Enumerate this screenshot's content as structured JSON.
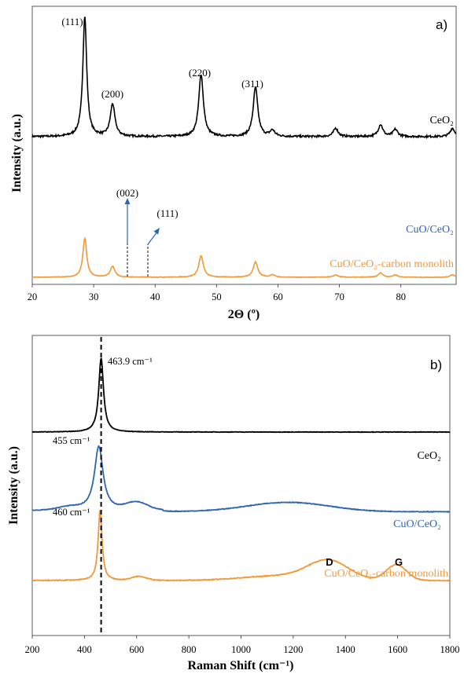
{
  "chart_data": [
    {
      "type": "line",
      "panel_label": "a)",
      "xlabel": "2Θ (º)",
      "ylabel": "Intensity (a.u.)",
      "xlim": [
        20,
        89
      ],
      "xticks": [
        20,
        30,
        40,
        50,
        60,
        70,
        80
      ],
      "colors": {
        "CeO2": "#000000",
        "CuO/CeO2": "#2e64b0",
        "carbon": "#f1993a"
      },
      "series": [
        {
          "key": "CeO2",
          "name": "CeO₂",
          "base": 0.82,
          "peaks": [
            [
              28.55,
              100
            ],
            [
              33.08,
              27
            ],
            [
              47.48,
              52
            ],
            [
              56.34,
              41
            ],
            [
              59.1,
              5
            ],
            [
              69.4,
              7
            ],
            [
              76.7,
              10
            ],
            [
              79.1,
              6
            ],
            [
              88.4,
              7
            ]
          ]
        },
        {
          "key": "CuO",
          "name": "CuO/CeO₂",
          "base": 0.51,
          "peaks": [
            [
              28.55,
              100
            ],
            [
              33.08,
              25
            ],
            [
              35.5,
              3
            ],
            [
              38.7,
              3
            ],
            [
              47.48,
              45
            ],
            [
              56.34,
              33
            ],
            [
              59.1,
              5
            ],
            [
              69.4,
              5
            ],
            [
              76.7,
              10
            ],
            [
              79.1,
              5
            ],
            [
              88.4,
              5
            ]
          ]
        },
        {
          "key": "carbon",
          "name": "CuO/CeO₂-carbon monolith",
          "base": 0.35,
          "peaks": [
            [
              28.55,
              100
            ],
            [
              33.08,
              28
            ],
            [
              47.48,
              55
            ],
            [
              56.34,
              39
            ],
            [
              59.1,
              6
            ],
            [
              69.4,
              6
            ],
            [
              76.7,
              11
            ],
            [
              79.1,
              6
            ],
            [
              88.4,
              6
            ]
          ]
        }
      ],
      "annotations": {
        "p111": "(111)",
        "p200": "(200)",
        "p220": "(220)",
        "p311": "(311)",
        "cuo002": "(002)",
        "cuo111": "(111)"
      }
    },
    {
      "type": "line",
      "panel_label": "b)",
      "xlabel": "Raman Shift (cm⁻¹)",
      "ylabel": "Intensity (a.u.)",
      "xlim": [
        200,
        1800
      ],
      "xticks": [
        200,
        400,
        600,
        800,
        1000,
        1200,
        1400,
        1600,
        1800
      ],
      "reference_shift": 463.9,
      "series": [
        {
          "key": "CeO2",
          "name": "CeO₂",
          "peak_label": "463.9 cm⁻¹"
        },
        {
          "key": "CuO",
          "name": "CuO/CeO₂",
          "peak_label": "455 cm⁻¹"
        },
        {
          "key": "carbon",
          "name": "CuO/CeO₂-carbon monolith",
          "peak_label": "460 cm⁻¹"
        }
      ],
      "bands": {
        "D": {
          "label": "D",
          "shift": 1335
        },
        "G": {
          "label": "G",
          "shift": 1595
        }
      }
    }
  ]
}
